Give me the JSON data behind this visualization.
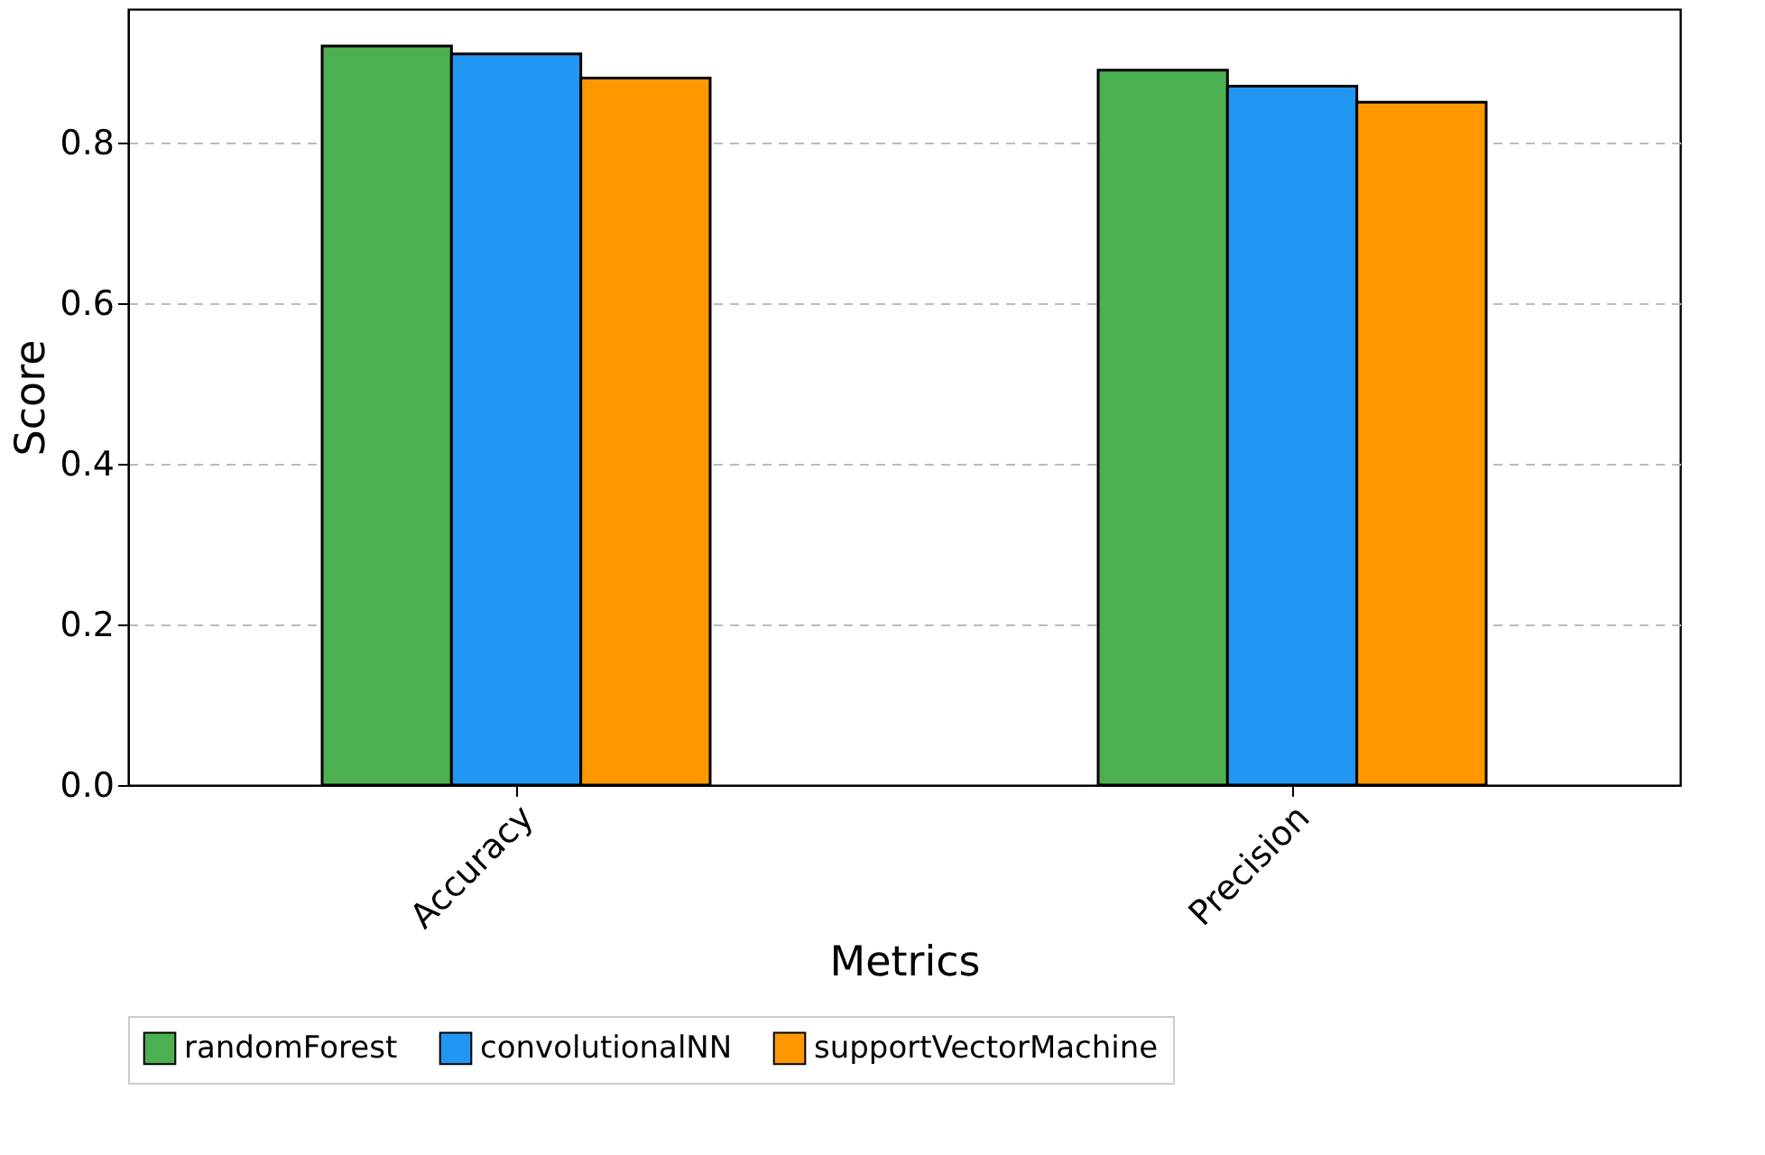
{
  "chart_data": {
    "type": "bar",
    "xlabel": "Metrics",
    "ylabel": "Score",
    "categories": [
      "Accuracy",
      "Precision"
    ],
    "series": [
      {
        "name": "randomForest",
        "color": "#4caf50",
        "values": [
          0.92,
          0.89
        ]
      },
      {
        "name": "convolutionalNN",
        "color": "#2196f3",
        "values": [
          0.91,
          0.87
        ]
      },
      {
        "name": "supportVectorMachine",
        "color": "#ff9800",
        "values": [
          0.88,
          0.85
        ]
      }
    ],
    "ylim": [
      0,
      0.966
    ],
    "yticks": [
      {
        "value": 0,
        "label": "0.0"
      },
      0.2,
      0.4,
      0.6,
      0.8
    ],
    "grid": "y",
    "legend": "bottom"
  }
}
